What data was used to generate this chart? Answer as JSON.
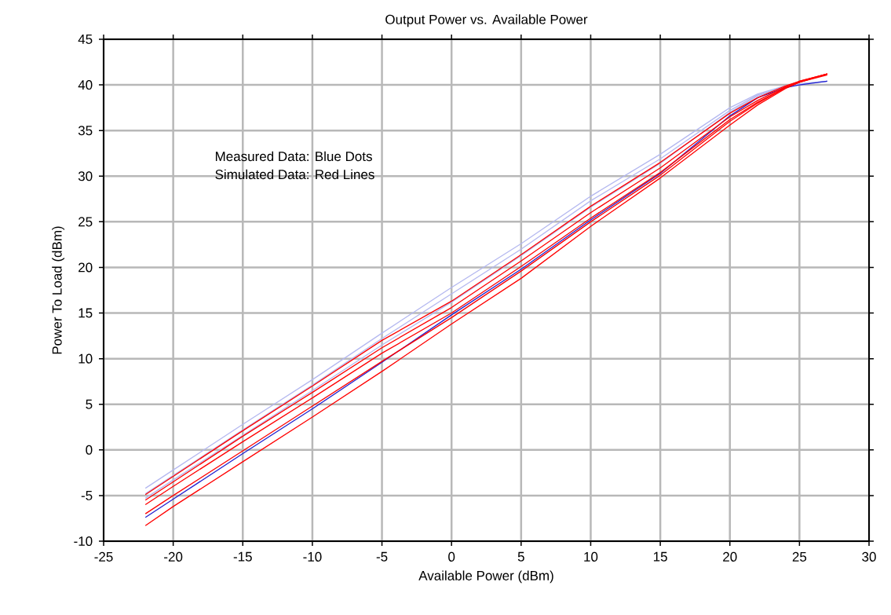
{
  "chart_data": {
    "type": "line",
    "title": "Output Power vs. Available Power",
    "xlabel": "Available Power (dBm)",
    "ylabel": "Power To Load (dBm)",
    "annotations": [
      "Measured Data: Blue Dots",
      "Simulated Data: Red Lines"
    ],
    "x": [
      -22,
      -20,
      -15,
      -10,
      -5,
      0,
      5,
      10,
      15,
      20,
      22,
      24,
      25,
      27
    ],
    "series": [
      {
        "color": "#b4b8f0",
        "values": [
          -4.2,
          -2.2,
          2.8,
          7.7,
          12.8,
          17.8,
          22.6,
          27.8,
          32.4,
          37.5,
          39.0,
          39.9,
          40.1,
          40.4
        ]
      },
      {
        "color": "#b4b8f0",
        "values": [
          -4.8,
          -2.8,
          2.2,
          7.1,
          12.2,
          17.1,
          22.0,
          27.3,
          31.9,
          37.2,
          38.9,
          39.8,
          40.1,
          40.4
        ]
      },
      {
        "color": "#b4b8f0",
        "values": [
          -5.3,
          -3.3,
          1.6,
          6.5,
          11.5,
          16.2,
          21.3,
          26.6,
          31.4,
          37.0,
          38.8,
          39.8,
          40.1,
          40.4
        ]
      },
      {
        "color": "#2020d0",
        "values": [
          -7.4,
          -5.4,
          -0.4,
          4.5,
          9.6,
          14.8,
          19.8,
          25.2,
          30.3,
          36.6,
          38.6,
          39.7,
          40.0,
          40.4
        ]
      },
      {
        "color": "#ff0000",
        "values": [
          -4.9,
          -2.9,
          2.1,
          7.0,
          12.0,
          16.3,
          21.4,
          26.7,
          31.5,
          36.9,
          38.6,
          39.9,
          40.4,
          41.2
        ]
      },
      {
        "color": "#ff0000",
        "values": [
          -5.5,
          -3.5,
          1.5,
          6.3,
          11.2,
          15.6,
          20.7,
          26.0,
          30.9,
          36.5,
          38.3,
          39.8,
          40.4,
          41.2
        ]
      },
      {
        "color": "#ff0000",
        "values": [
          -6.0,
          -4.0,
          0.9,
          5.7,
          10.6,
          15.0,
          20.1,
          25.4,
          30.4,
          36.2,
          38.1,
          39.7,
          40.3,
          41.2
        ]
      },
      {
        "color": "#ff0000",
        "values": [
          -7.0,
          -5.0,
          -0.1,
          4.8,
          9.7,
          14.5,
          19.6,
          25.0,
          30.1,
          36.0,
          38.0,
          39.7,
          40.3,
          41.1
        ]
      },
      {
        "color": "#ff0000",
        "values": [
          -8.3,
          -6.2,
          -1.3,
          3.6,
          8.6,
          13.8,
          18.8,
          24.5,
          29.8,
          35.6,
          37.8,
          39.6,
          40.3,
          41.2
        ]
      }
    ],
    "xlim": [
      -25,
      30
    ],
    "ylim": [
      -10,
      45
    ],
    "xticks": [
      -25,
      -20,
      -15,
      -10,
      -5,
      0,
      5,
      10,
      15,
      20,
      25,
      30
    ],
    "yticks": [
      -10,
      -5,
      0,
      5,
      10,
      15,
      20,
      25,
      30,
      35,
      40,
      45
    ],
    "grid": true,
    "marker": "none",
    "line_style": "solid"
  }
}
